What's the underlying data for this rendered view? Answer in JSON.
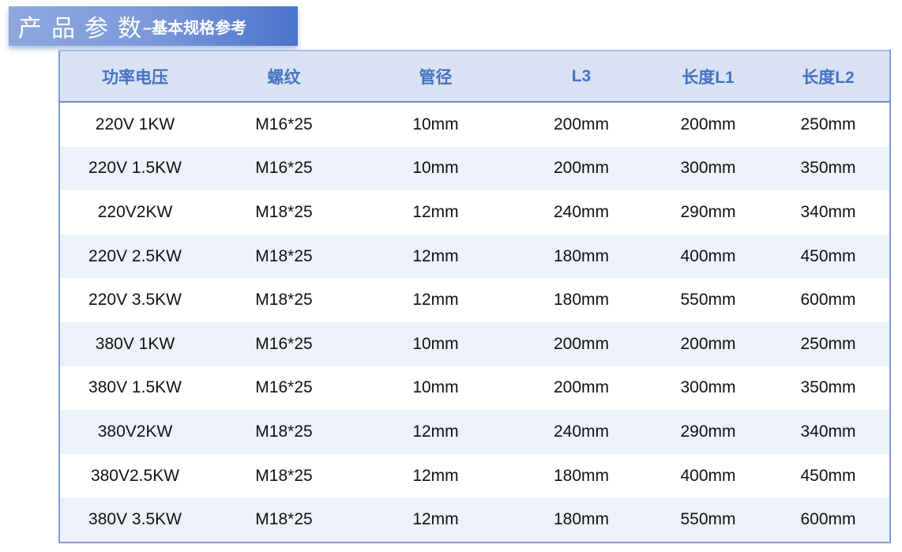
{
  "banner": {
    "title": "产品参数",
    "subtitle": "–基本规格参考"
  },
  "table": {
    "headers": [
      "功率电压",
      "螺纹",
      "管径",
      "L3",
      "长度L1",
      "长度L2"
    ],
    "rows": [
      [
        "220V 1KW",
        "M16*25",
        "10mm",
        "200mm",
        "200mm",
        "250mm"
      ],
      [
        "220V 1.5KW",
        "M16*25",
        "10mm",
        "200mm",
        "300mm",
        "350mm"
      ],
      [
        "220V2KW",
        "M18*25",
        "12mm",
        "240mm",
        "290mm",
        "340mm"
      ],
      [
        "220V 2.5KW",
        "M18*25",
        "12mm",
        "180mm",
        "400mm",
        "450mm"
      ],
      [
        "220V 3.5KW",
        "M18*25",
        "12mm",
        "180mm",
        "550mm",
        "600mm"
      ],
      [
        "380V 1KW",
        "M16*25",
        "10mm",
        "200mm",
        "200mm",
        "250mm"
      ],
      [
        "380V 1.5KW",
        "M16*25",
        "10mm",
        "200mm",
        "300mm",
        "350mm"
      ],
      [
        "380V2KW",
        "M18*25",
        "12mm",
        "240mm",
        "290mm",
        "340mm"
      ],
      [
        "380V2.5KW",
        "M18*25",
        "12mm",
        "180mm",
        "400mm",
        "450mm"
      ],
      [
        "380V 3.5KW",
        "M18*25",
        "12mm",
        "180mm",
        "550mm",
        "600mm"
      ]
    ]
  },
  "colors": {
    "header_text": "#4472c4",
    "header_bg": "#d9e2f3",
    "alt_row_bg": "#edf1f9",
    "banner": "#6f8fd6"
  }
}
